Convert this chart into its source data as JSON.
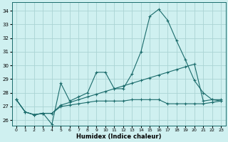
{
  "xlabel": "Humidex (Indice chaleur)",
  "background_color": "#cff0f0",
  "grid_color": "#aad4d4",
  "line_color": "#1a6b6b",
  "xlim": [
    -0.5,
    23.5
  ],
  "ylim": [
    25.6,
    34.6
  ],
  "yticks": [
    26,
    27,
    28,
    29,
    30,
    31,
    32,
    33,
    34
  ],
  "xticks": [
    0,
    1,
    2,
    3,
    4,
    5,
    6,
    7,
    8,
    9,
    10,
    11,
    12,
    13,
    14,
    15,
    16,
    17,
    18,
    19,
    20,
    21,
    22,
    23
  ],
  "series": [
    [
      27.5,
      26.6,
      26.4,
      26.5,
      25.7,
      28.7,
      27.4,
      27.7,
      28.0,
      29.5,
      29.5,
      28.3,
      28.3,
      29.4,
      31.0,
      33.6,
      34.1,
      33.3,
      31.8,
      30.4,
      28.9,
      28.0,
      27.5,
      27.4
    ],
    [
      27.5,
      26.6,
      26.4,
      26.5,
      26.5,
      27.1,
      27.3,
      27.5,
      27.7,
      27.9,
      28.1,
      28.3,
      28.5,
      28.7,
      28.9,
      29.1,
      29.3,
      29.5,
      29.7,
      29.9,
      30.1,
      27.4,
      27.5,
      27.5
    ],
    [
      27.5,
      26.6,
      26.4,
      26.5,
      26.5,
      27.0,
      27.1,
      27.2,
      27.3,
      27.4,
      27.4,
      27.4,
      27.4,
      27.5,
      27.5,
      27.5,
      27.5,
      27.2,
      27.2,
      27.2,
      27.2,
      27.2,
      27.3,
      27.4
    ]
  ]
}
